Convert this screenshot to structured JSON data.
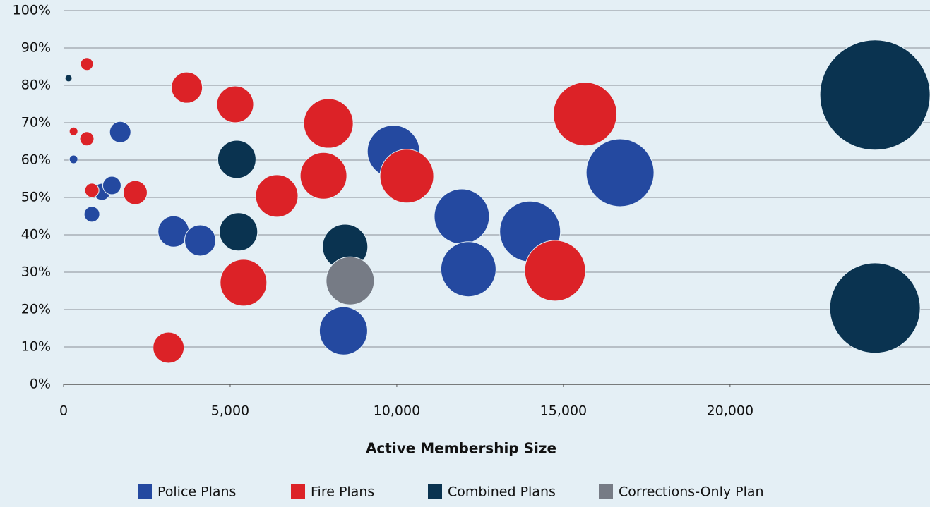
{
  "chart_data": {
    "type": "scatter",
    "x_label": "Active Membership Size",
    "xlim": [
      0,
      26000
    ],
    "xticks": [
      0,
      {
        "value": 5000,
        "label": "5,000"
      },
      {
        "value": 10000,
        "label": "10,000"
      },
      {
        "value": 15000,
        "label": "15,000"
      },
      {
        "value": 20000,
        "label": "20,000"
      }
    ],
    "ylim": [
      0,
      100
    ],
    "yticks": [
      {
        "value": 0,
        "label": "0%"
      },
      {
        "value": 10,
        "label": "10%"
      },
      {
        "value": 20,
        "label": "20%"
      },
      {
        "value": 30,
        "label": "30%"
      },
      {
        "value": 40,
        "label": "40%"
      },
      {
        "value": 50,
        "label": "50%"
      },
      {
        "value": 60,
        "label": "60%"
      },
      {
        "value": 70,
        "label": "70%"
      },
      {
        "value": 80,
        "label": "80%"
      },
      {
        "value": 90,
        "label": "90%"
      },
      {
        "value": 100,
        "label": "100%"
      }
    ],
    "grid": true,
    "legend": "bottom",
    "series": [
      {
        "name": "Police Plans",
        "color": "#2449a0",
        "x": [
          300,
          850,
          1150,
          1450,
          1700,
          3300,
          4100,
          9900,
          11950,
          12150,
          14000,
          16700,
          8400
        ],
        "values": [
          60.2,
          45.5,
          51.5,
          53.2,
          67.5,
          40.9,
          38.5,
          62.3,
          44.9,
          30.8,
          40.9,
          56.6,
          14.3
        ],
        "sizes": [
          6,
          11,
          12,
          13,
          15,
          22,
          22,
          37,
          39,
          39,
          43,
          48,
          34
        ]
      },
      {
        "name": "Fire Plans",
        "color": "#dc2227",
        "x": [
          700,
          300,
          700,
          850,
          2150,
          3700,
          5150,
          3150,
          6400,
          7800,
          7950,
          10300,
          5400,
          15650,
          14750
        ],
        "values": [
          85.7,
          67.7,
          65.7,
          51.9,
          51.3,
          79.4,
          74.9,
          9.8,
          50.4,
          55.8,
          69.8,
          55.7,
          27.2,
          72.3,
          30.4
        ],
        "sizes": [
          9,
          6,
          10,
          10,
          17,
          22,
          26,
          22,
          30,
          33,
          35,
          38,
          33,
          45,
          43
        ]
      },
      {
        "name": "Combined Plans",
        "color": "#0a3350",
        "x": [
          150,
          5200,
          5250,
          8450,
          24350,
          24350
        ],
        "values": [
          81.9,
          60.2,
          40.8,
          36.8,
          77.4,
          20.4
        ],
        "sizes": [
          5,
          27,
          27,
          32,
          78,
          64
        ]
      },
      {
        "name": "Corrections-Only Plan",
        "color": "#767b85",
        "x": [
          8600
        ],
        "values": [
          27.7
        ],
        "sizes": [
          34
        ]
      }
    ]
  }
}
